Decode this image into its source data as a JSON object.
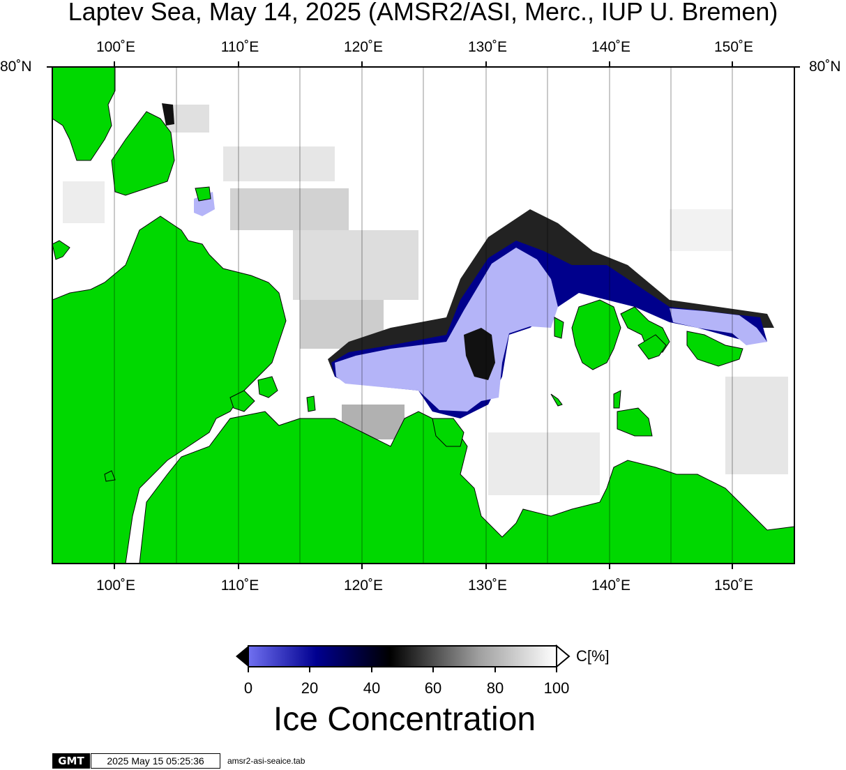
{
  "title": "Laptev Sea, May 14, 2025 (AMSR2/ASI, Merc., IUP U. Bremen)",
  "map": {
    "lon_ticks": [
      "100˚E",
      "110˚E",
      "120˚E",
      "130˚E",
      "140˚E",
      "150˚E"
    ],
    "lat_label": "80˚N",
    "colors": {
      "land": "#00d800",
      "water_ice_free": "#b4b4f8",
      "ice_full": "#ffffff",
      "ice_mid": "#000000",
      "ice_low": "#000080",
      "frame": "#000000"
    }
  },
  "colorbar": {
    "unit_label": "C[%]",
    "ticks": [
      "0",
      "20",
      "40",
      "60",
      "80",
      "100"
    ],
    "title": "Ice Concentration"
  },
  "footer": {
    "logo": "GMT",
    "timestamp": "2025 May 15 05:25:36",
    "file": "amsr2-asi-seaice.tab"
  }
}
